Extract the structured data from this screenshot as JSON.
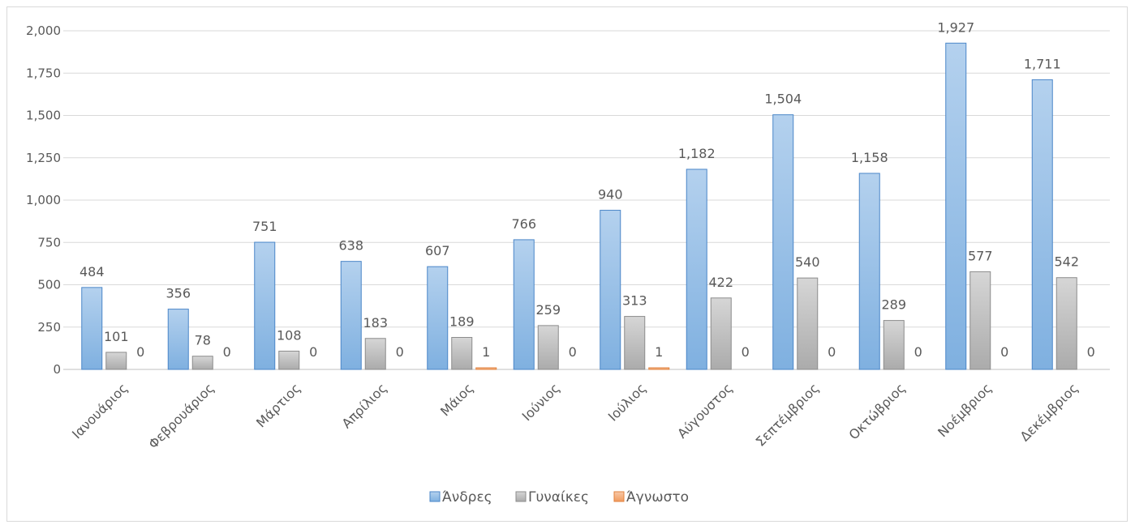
{
  "chart_data": {
    "type": "bar",
    "title": "",
    "xlabel": "",
    "ylabel": "",
    "ylim": [
      0,
      2000
    ],
    "yticks": [
      0,
      250,
      500,
      750,
      1000,
      1250,
      1500,
      1750,
      2000
    ],
    "ytick_labels": [
      "0",
      "250",
      "500",
      "750",
      "1,000",
      "1,250",
      "1,500",
      "1,750",
      "2,000"
    ],
    "grid": true,
    "legend_position": "bottom",
    "categories": [
      "Ιανουάριος",
      "Φεβρουάριος",
      "Μάρτιος",
      "Απρίλιος",
      "Μάιος",
      "Ιούνιος",
      "Ιούλιος",
      "Αύγουστος",
      "Σεπτέμβριος",
      "Οκτώβριος",
      "Νοέμβριος",
      "Δεκέμβριος"
    ],
    "series": [
      {
        "name": "Άνδρες",
        "color": "#9dc3e6",
        "values": [
          484,
          356,
          751,
          638,
          607,
          766,
          940,
          1182,
          1504,
          1158,
          1927,
          1711
        ],
        "labels": [
          "484",
          "356",
          "751",
          "638",
          "607",
          "766",
          "940",
          "1,182",
          "1,504",
          "1,158",
          "1,927",
          "1,711"
        ]
      },
      {
        "name": "Γυναίκες",
        "color": "#bfbfbf",
        "values": [
          101,
          78,
          108,
          183,
          189,
          259,
          313,
          422,
          540,
          289,
          577,
          542
        ],
        "labels": [
          "101",
          "78",
          "108",
          "183",
          "189",
          "259",
          "313",
          "422",
          "540",
          "289",
          "577",
          "542"
        ]
      },
      {
        "name": "Άγνωστο",
        "color": "#f4b183",
        "values": [
          0,
          0,
          0,
          0,
          1,
          0,
          1,
          0,
          0,
          0,
          0,
          0
        ],
        "labels": [
          "0",
          "0",
          "0",
          "0",
          "1",
          "0",
          "1",
          "0",
          "0",
          "0",
          "0",
          "0"
        ]
      }
    ]
  }
}
